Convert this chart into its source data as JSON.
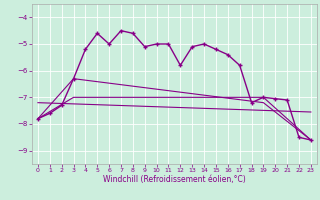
{
  "xlabel": "Windchill (Refroidissement éolien,°C)",
  "bg_color": "#cceedd",
  "line_color": "#880088",
  "grid_color": "#ffffff",
  "xlim": [
    -0.5,
    23.5
  ],
  "ylim": [
    -9.5,
    -3.5
  ],
  "yticks": [
    -9,
    -8,
    -7,
    -6,
    -5,
    -4
  ],
  "xticks": [
    0,
    1,
    2,
    3,
    4,
    5,
    6,
    7,
    8,
    9,
    10,
    11,
    12,
    13,
    14,
    15,
    16,
    17,
    18,
    19,
    20,
    21,
    22,
    23
  ],
  "series1_x": [
    0,
    1,
    2,
    3,
    4,
    5,
    6,
    7,
    8,
    9,
    10,
    11,
    12,
    13,
    14,
    15,
    16,
    17,
    18,
    19,
    20,
    21,
    22,
    23
  ],
  "series1_y": [
    -7.8,
    -7.6,
    -7.3,
    -6.3,
    -5.2,
    -4.6,
    -5.0,
    -4.5,
    -4.6,
    -5.1,
    -5.0,
    -5.0,
    -5.8,
    -5.1,
    -5.0,
    -5.2,
    -5.4,
    -5.8,
    -7.2,
    -7.0,
    -7.05,
    -7.1,
    -8.5,
    -8.6
  ],
  "series2_x": [
    0,
    3,
    19,
    23
  ],
  "series2_y": [
    -7.8,
    -7.0,
    -7.0,
    -8.6
  ],
  "series3_x": [
    0,
    3,
    19,
    23
  ],
  "series3_y": [
    -7.8,
    -6.3,
    -7.2,
    -8.6
  ],
  "series4_x": [
    0,
    23
  ],
  "series4_y": [
    -7.2,
    -7.55
  ]
}
